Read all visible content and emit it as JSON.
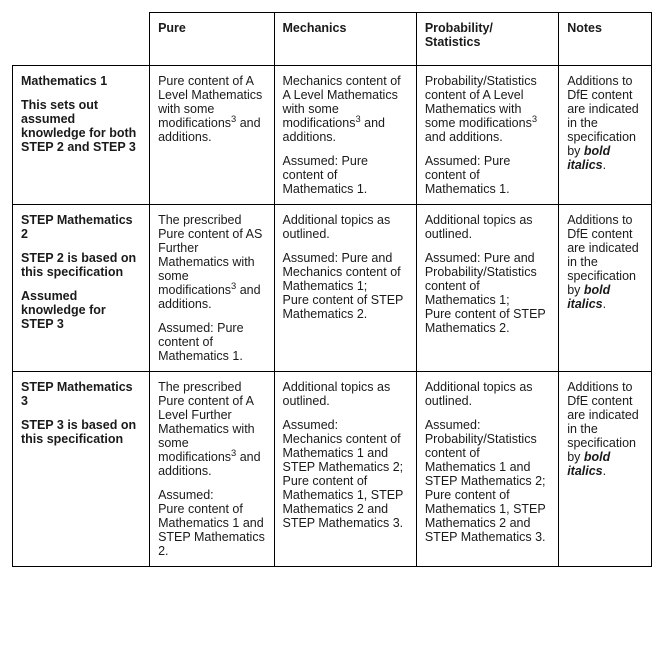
{
  "headers": {
    "pure": "Pure",
    "mechanics": "Mechanics",
    "probstats": "Probability/\nStatistics",
    "notes": "Notes"
  },
  "rows": [
    {
      "label_parts": [
        "Mathematics 1",
        "This sets out assumed knowledge for both STEP 2 and STEP 3"
      ],
      "pure_parts": [
        {
          "text": "Pure content of A Level Mathematics with some modifications",
          "sup": "3",
          "tail": " and additions."
        }
      ],
      "mech_parts": [
        {
          "text": "Mechanics content of A Level Mathematics with some modifications",
          "sup": "3",
          "tail": " and additions."
        },
        {
          "text": "Assumed: Pure content of Mathematics 1."
        }
      ],
      "prob_parts": [
        {
          "text": "Probability/Statistics content of A Level Mathematics with some modifications",
          "sup": "3",
          "tail": " and additions."
        },
        {
          "text": "Assumed: Pure content of Mathematics 1."
        }
      ],
      "notes": {
        "pre": "Additions to DfE content are indicated in the specification by ",
        "bi": "bold italics",
        "post": "."
      }
    },
    {
      "label_parts": [
        "STEP Mathematics 2",
        "STEP 2 is based on this specification",
        "Assumed knowledge for STEP 3"
      ],
      "pure_parts": [
        {
          "text": "The prescribed Pure content of AS Further Mathematics with some modifications",
          "sup": "3",
          "tail": " and additions."
        },
        {
          "text": "Assumed: Pure content of Mathematics 1."
        }
      ],
      "mech_parts": [
        {
          "text": "Additional topics as outlined."
        },
        {
          "text": "Assumed: Pure and Mechanics content of Mathematics 1;\nPure content of STEP Mathematics 2."
        }
      ],
      "prob_parts": [
        {
          "text": "Additional topics as outlined."
        },
        {
          "text": "Assumed: Pure and Probability/Statistics content of Mathematics 1;\nPure content of STEP Mathematics 2."
        }
      ],
      "notes": {
        "pre": "Additions to DfE content are indicated in the specification by ",
        "bi": "bold italics",
        "post": "."
      }
    },
    {
      "label_parts": [
        "STEP Mathematics 3",
        "STEP 3 is based on this specification"
      ],
      "pure_parts": [
        {
          "text": "The prescribed Pure content of A Level Further Mathematics with some modifications",
          "sup": "3",
          "tail": " and additions."
        },
        {
          "text": "Assumed:\nPure content of Mathematics 1 and STEP Mathematics 2."
        }
      ],
      "mech_parts": [
        {
          "text": "Additional topics as outlined."
        },
        {
          "text": "Assumed:\nMechanics content of Mathematics 1 and STEP Mathematics 2;\nPure content of Mathematics 1, STEP Mathematics 2 and STEP Mathematics 3."
        }
      ],
      "prob_parts": [
        {
          "text": "Additional topics as outlined."
        },
        {
          "text": "Assumed:\nProbability/Statistics content of Mathematics 1 and STEP Mathematics 2;\nPure content of Mathematics 1, STEP Mathematics 2 and STEP Mathematics 3."
        }
      ],
      "notes": {
        "pre": "Additions to DfE content are indicated in the specification by ",
        "bi": "bold italics",
        "post": "."
      }
    }
  ]
}
